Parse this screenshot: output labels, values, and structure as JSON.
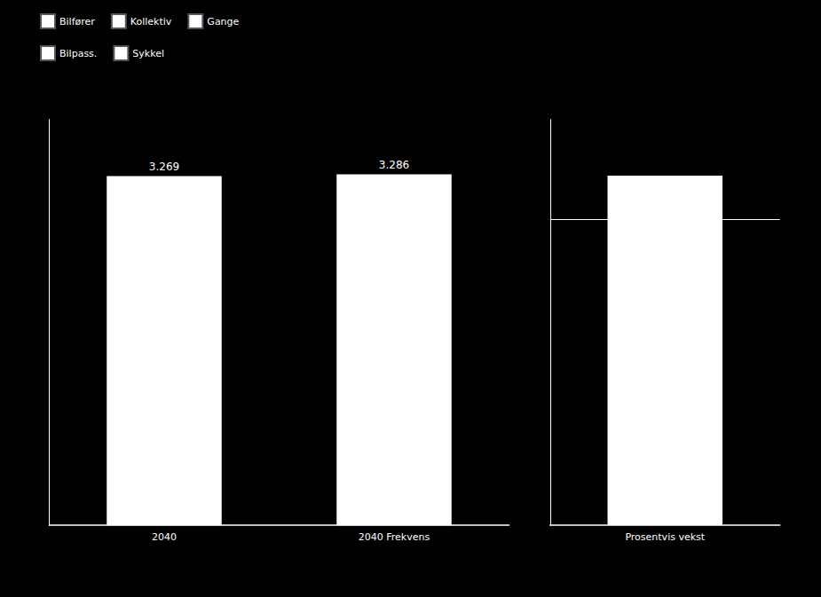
{
  "chart_data": [
    {
      "type": "bar",
      "categories": [
        "2040",
        "2040 Frekvens"
      ],
      "values": [
        3.269,
        3.286
      ],
      "data_labels": true,
      "color": "#ffffff",
      "ylim": [
        0,
        3.8
      ],
      "yticks": [],
      "tick_labels": "x",
      "grid": false,
      "legend": "upper left",
      "legend_entries": [
        {
          "name": "Bilfører",
          "color": "#ffffff"
        },
        {
          "name": "Kollektiv",
          "color": "#ffffff"
        },
        {
          "name": "Gange",
          "color": "#ffffff"
        },
        {
          "name": "Bilpass.",
          "color": "#ffffff"
        },
        {
          "name": "Sykkel",
          "color": "#ffffff"
        }
      ]
    },
    {
      "type": "bar",
      "categories": [
        "Prosentvis vekst"
      ],
      "values": [
        0.52
      ],
      "zero_line": 0.38,
      "color": "#ffffff",
      "ylim": [
        -0.6,
        0.7
      ],
      "yticks": [],
      "tick_labels": "x",
      "grid": false
    }
  ]
}
